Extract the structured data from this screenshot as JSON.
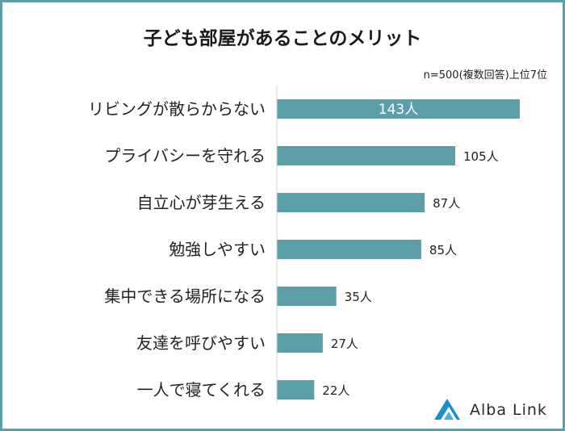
{
  "chart_data": {
    "type": "bar",
    "orientation": "horizontal",
    "title": "子ども部屋があることのメリット",
    "note": "n=500(複数回答)上位7位",
    "categories": [
      "リビングが散らからない",
      "プライバシーを守れる",
      "自立心が芽生える",
      "勉強しやすい",
      "集中できる場所になる",
      "友達を呼びやすい",
      "一人で寝てくれる"
    ],
    "values": [
      143,
      105,
      87,
      85,
      35,
      27,
      22
    ],
    "value_labels": [
      "143人",
      "105人",
      "87人",
      "85人",
      "35人",
      "27人",
      "22人"
    ],
    "xlim": [
      0,
      143
    ],
    "grid": false,
    "bar_color": "#5d9fa9"
  },
  "brand": {
    "name": "Alba Link",
    "accent": "#1a8fd0"
  },
  "frame_color": "#5d9fa9"
}
